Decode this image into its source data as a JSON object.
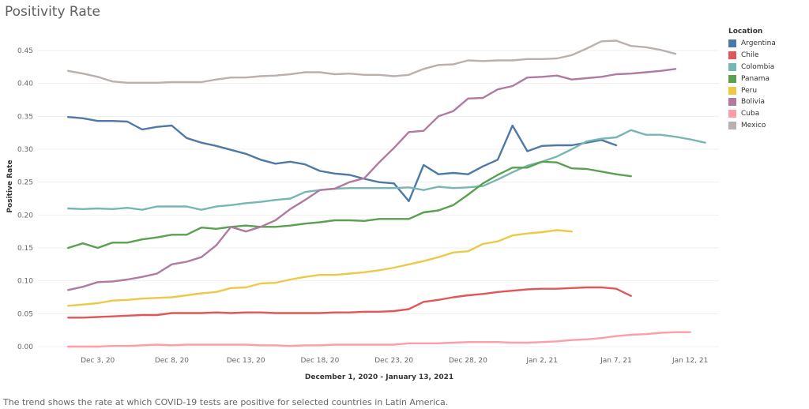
{
  "title": "Positivity Rate",
  "caption": "The trend shows the rate at which COVID-19 tests are positive for selected countries in Latin America.",
  "legend_title": "Location",
  "chart_data": {
    "type": "line",
    "xlabel": "December 1, 2020 - January 13, 2021",
    "ylabel": "Positive Rate",
    "x_tick_labels": [
      "Dec 3, 20",
      "Dec 8, 20",
      "Dec 13, 20",
      "Dec 18, 20",
      "Dec 23, 20",
      "Dec 28, 20",
      "Jan 2, 21",
      "Jan 7, 21",
      "Jan 12, 21"
    ],
    "y_tick_labels": [
      "0.00",
      "0.05",
      "0.10",
      "0.15",
      "0.20",
      "0.25",
      "0.30",
      "0.35",
      "0.40",
      "0.45"
    ],
    "xlim": [
      "2020-12-01",
      "2021-01-13"
    ],
    "ylim": [
      0,
      0.47
    ],
    "grid": "horizontal",
    "legend_position": "right",
    "series": [
      {
        "name": "Argentina",
        "color": "#4e79a7",
        "start": "2020-12-01",
        "values": [
          0.349,
          0.347,
          0.343,
          0.343,
          0.342,
          0.33,
          0.334,
          0.336,
          0.317,
          0.31,
          0.305,
          0.299,
          0.293,
          0.284,
          0.278,
          0.281,
          0.277,
          0.267,
          0.263,
          0.261,
          0.255,
          0.25,
          0.248,
          0.221,
          0.276,
          0.262,
          0.264,
          0.262,
          0.274,
          0.284,
          0.336,
          0.297,
          0.305,
          0.306,
          0.306,
          0.31,
          0.314,
          0.306
        ]
      },
      {
        "name": "Chile",
        "color": "#e15759",
        "start": "2020-12-01",
        "values": [
          0.044,
          0.044,
          0.045,
          0.046,
          0.047,
          0.048,
          0.048,
          0.051,
          0.051,
          0.051,
          0.052,
          0.051,
          0.052,
          0.052,
          0.051,
          0.051,
          0.051,
          0.051,
          0.052,
          0.052,
          0.053,
          0.053,
          0.054,
          0.057,
          0.068,
          0.071,
          0.075,
          0.078,
          0.08,
          0.083,
          0.085,
          0.087,
          0.088,
          0.088,
          0.089,
          0.09,
          0.09,
          0.088,
          0.077
        ]
      },
      {
        "name": "Colombia",
        "color": "#76b7b2",
        "start": "2020-12-01",
        "values": [
          0.21,
          0.209,
          0.21,
          0.209,
          0.211,
          0.208,
          0.213,
          0.213,
          0.213,
          0.208,
          0.213,
          0.215,
          0.218,
          0.22,
          0.223,
          0.225,
          0.235,
          0.238,
          0.24,
          0.241,
          0.241,
          0.241,
          0.241,
          0.242,
          0.238,
          0.243,
          0.241,
          0.242,
          0.244,
          0.254,
          0.265,
          0.275,
          0.281,
          0.289,
          0.3,
          0.312,
          0.316,
          0.318,
          0.329,
          0.322,
          0.322,
          0.319,
          0.315,
          0.31
        ]
      },
      {
        "name": "Panama",
        "color": "#59a14f",
        "start": "2020-12-01",
        "values": [
          0.15,
          0.157,
          0.15,
          0.158,
          0.158,
          0.163,
          0.166,
          0.17,
          0.17,
          0.181,
          0.179,
          0.182,
          0.184,
          0.182,
          0.182,
          0.184,
          0.187,
          0.189,
          0.192,
          0.192,
          0.191,
          0.194,
          0.194,
          0.194,
          0.204,
          0.207,
          0.215,
          0.231,
          0.248,
          0.261,
          0.272,
          0.272,
          0.281,
          0.28,
          0.271,
          0.27,
          0.266,
          0.262,
          0.259
        ]
      },
      {
        "name": "Peru",
        "color": "#edc948",
        "start": "2020-12-01",
        "values": [
          0.062,
          0.064,
          0.066,
          0.07,
          0.071,
          0.073,
          0.074,
          0.075,
          0.078,
          0.081,
          0.083,
          0.089,
          0.09,
          0.096,
          0.097,
          0.102,
          0.106,
          0.109,
          0.109,
          0.111,
          0.113,
          0.116,
          0.12,
          0.125,
          0.13,
          0.136,
          0.143,
          0.145,
          0.156,
          0.16,
          0.169,
          0.172,
          0.174,
          0.177,
          0.175
        ]
      },
      {
        "name": "Bolivia",
        "color": "#b07aa1",
        "start": "2020-12-01",
        "values": [
          0.086,
          0.091,
          0.098,
          0.099,
          0.102,
          0.106,
          0.111,
          0.125,
          0.129,
          0.136,
          0.154,
          0.182,
          0.175,
          0.182,
          0.192,
          0.209,
          0.223,
          0.238,
          0.24,
          0.25,
          0.256,
          0.28,
          0.302,
          0.326,
          0.328,
          0.35,
          0.358,
          0.377,
          0.378,
          0.391,
          0.396,
          0.409,
          0.41,
          0.412,
          0.406,
          0.408,
          0.41,
          0.414,
          0.415,
          0.417,
          0.419,
          0.422
        ]
      },
      {
        "name": "Cuba",
        "color": "#ff9da7",
        "start": "2020-12-01",
        "values": [
          0.0,
          0.0,
          0.0,
          0.001,
          0.001,
          0.002,
          0.003,
          0.002,
          0.003,
          0.003,
          0.003,
          0.003,
          0.003,
          0.002,
          0.002,
          0.001,
          0.002,
          0.002,
          0.003,
          0.003,
          0.003,
          0.003,
          0.003,
          0.005,
          0.005,
          0.005,
          0.006,
          0.007,
          0.007,
          0.007,
          0.006,
          0.006,
          0.007,
          0.008,
          0.01,
          0.011,
          0.013,
          0.016,
          0.018,
          0.019,
          0.021,
          0.022,
          0.022
        ]
      },
      {
        "name": "Mexico",
        "color": "#bab0ac",
        "start": "2020-12-01",
        "values": [
          0.419,
          0.415,
          0.41,
          0.403,
          0.401,
          0.401,
          0.401,
          0.402,
          0.402,
          0.402,
          0.406,
          0.409,
          0.409,
          0.411,
          0.412,
          0.414,
          0.417,
          0.417,
          0.414,
          0.415,
          0.413,
          0.413,
          0.411,
          0.413,
          0.422,
          0.428,
          0.429,
          0.435,
          0.434,
          0.435,
          0.435,
          0.437,
          0.437,
          0.438,
          0.443,
          0.453,
          0.464,
          0.465,
          0.457,
          0.455,
          0.451,
          0.445
        ]
      }
    ]
  }
}
